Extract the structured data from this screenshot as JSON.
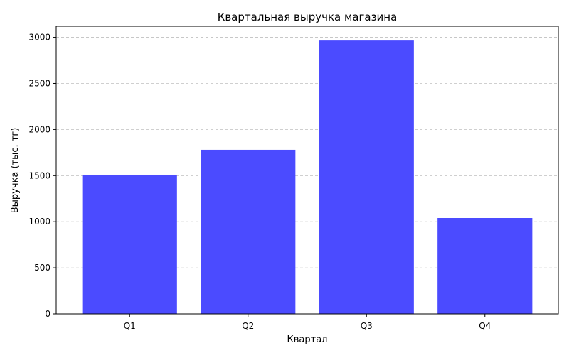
{
  "chart_data": {
    "type": "bar",
    "title": "Квартальная выручка магазина",
    "xlabel": "Квартал",
    "ylabel": "Выручка (тыс. тг)",
    "categories": [
      "Q1",
      "Q2",
      "Q3",
      "Q4"
    ],
    "values": [
      1510,
      1780,
      2965,
      1040
    ],
    "ylim": [
      0,
      3120
    ],
    "yticks": [
      0,
      500,
      1000,
      1500,
      2000,
      2500,
      3000
    ],
    "grid": "y-dashed",
    "bar_color": "#4b4bff"
  }
}
